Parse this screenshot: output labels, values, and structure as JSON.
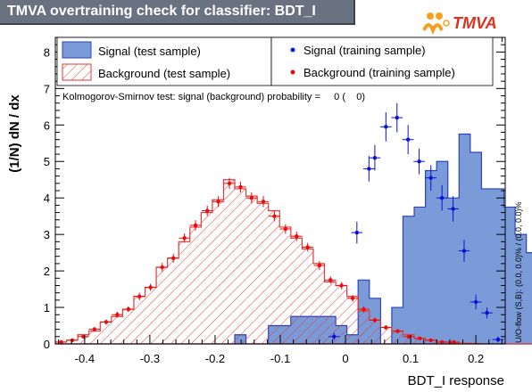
{
  "header": {
    "title": "TMVA overtraining check for classifier: BDT_I",
    "logo_text": "TMVA"
  },
  "colors": {
    "signal_fill": "#7b9bd8",
    "signal_line": "#2a44b8",
    "signal_marker": "#0a10d8",
    "background_hatch": "#e03a3a",
    "background_marker": "#ee0a0a",
    "title_bg": "#6a7282",
    "logo_orange": "#f5a020"
  },
  "legend": {
    "signal_test": "Signal (test sample)",
    "background_test": "Background (test sample)",
    "signal_training": "Signal (training sample)",
    "background_training": "Background (training sample)"
  },
  "ks_text": "Kolmogorov-Smirnov test: signal (background) probability =     0 (    0)",
  "side_text": "U/O-flow (S,B): (0.0, 0.0)% / (0.0, 0.0)%",
  "chart_data": {
    "type": "histogram",
    "xlabel": "BDT_I response",
    "ylabel": "(1/N) dN / dx",
    "xlim": [
      -0.445,
      0.245
    ],
    "ylim": [
      0,
      8.4
    ],
    "xticks": [
      "-0.4",
      "-0.3",
      "-0.2",
      "-0.1",
      "0",
      "0.1",
      "0.2"
    ],
    "xtick_values": [
      -0.4,
      -0.3,
      -0.2,
      -0.1,
      0,
      0.1,
      0.2
    ],
    "yticks": [
      "0",
      "1",
      "2",
      "3",
      "4",
      "5",
      "6",
      "7",
      "8"
    ],
    "ytick_values": [
      0,
      1,
      2,
      3,
      4,
      5,
      6,
      7,
      8
    ],
    "bin_edges_start": -0.445,
    "bin_width": 0.0172,
    "series": [
      {
        "name": "Signal (test sample)",
        "kind": "filled histogram",
        "values": [
          0,
          0,
          0,
          0,
          0,
          0,
          0,
          0,
          0,
          0,
          0,
          0,
          0,
          0,
          0,
          0,
          0.25,
          0,
          0,
          0.5,
          0.5,
          0.75,
          0.75,
          0.75,
          0.75,
          0.5,
          0.25,
          1.75,
          1.25,
          0,
          1.0,
          3.5,
          3.75,
          4.75,
          5.0,
          4.0,
          5.75,
          5.25,
          4.25,
          4.25,
          3.75,
          3.0,
          2.5,
          1.25,
          0.75,
          0.25,
          0.25
        ]
      },
      {
        "name": "Background (test sample)",
        "kind": "hatched histogram",
        "values": [
          0.05,
          0.1,
          0.25,
          0.35,
          0.6,
          0.75,
          0.95,
          1.3,
          1.55,
          2.1,
          2.35,
          2.8,
          3.2,
          3.6,
          3.95,
          4.5,
          4.25,
          4.05,
          3.85,
          3.65,
          3.2,
          2.9,
          2.6,
          2.2,
          1.7,
          1.6,
          1.3,
          0.9,
          0.65,
          0.45,
          0.35,
          0.25,
          0.15,
          0.1,
          0.05,
          0.03,
          0.02,
          0.01,
          0,
          0,
          0,
          0,
          0,
          0,
          0,
          0,
          0
        ]
      },
      {
        "name": "Signal (training sample)",
        "kind": "points with error bars",
        "points": [
          {
            "x": -0.0175,
            "y": 0.2,
            "err": 0.1
          },
          {
            "x": 0.0175,
            "y": 3.05,
            "err": 0.3
          },
          {
            "x": 0.036,
            "y": 4.8,
            "err": 0.35
          },
          {
            "x": 0.045,
            "y": 5.1,
            "err": 0.35
          },
          {
            "x": 0.062,
            "y": 5.95,
            "err": 0.4
          },
          {
            "x": 0.079,
            "y": 6.2,
            "err": 0.4
          },
          {
            "x": 0.096,
            "y": 5.6,
            "err": 0.4
          },
          {
            "x": 0.113,
            "y": 5.0,
            "err": 0.35
          },
          {
            "x": 0.131,
            "y": 4.55,
            "err": 0.35
          },
          {
            "x": 0.148,
            "y": 4.0,
            "err": 0.35
          },
          {
            "x": 0.165,
            "y": 3.7,
            "err": 0.35
          },
          {
            "x": 0.182,
            "y": 2.55,
            "err": 0.3
          },
          {
            "x": 0.2,
            "y": 1.15,
            "err": 0.2
          },
          {
            "x": 0.217,
            "y": 0.85,
            "err": 0.15
          },
          {
            "x": 0.234,
            "y": 0.12,
            "err": 0.08
          }
        ]
      },
      {
        "name": "Background (training sample)",
        "kind": "points with error bars",
        "points": [
          {
            "x": -0.436,
            "y": 0.05,
            "err": 0.03
          },
          {
            "x": -0.419,
            "y": 0.1,
            "err": 0.04
          },
          {
            "x": -0.402,
            "y": 0.2,
            "err": 0.05
          },
          {
            "x": -0.385,
            "y": 0.4,
            "err": 0.06
          },
          {
            "x": -0.367,
            "y": 0.6,
            "err": 0.07
          },
          {
            "x": -0.35,
            "y": 0.8,
            "err": 0.08
          },
          {
            "x": -0.333,
            "y": 0.95,
            "err": 0.08
          },
          {
            "x": -0.316,
            "y": 1.3,
            "err": 0.1
          },
          {
            "x": -0.299,
            "y": 1.55,
            "err": 0.1
          },
          {
            "x": -0.281,
            "y": 2.1,
            "err": 0.12
          },
          {
            "x": -0.264,
            "y": 2.35,
            "err": 0.12
          },
          {
            "x": -0.247,
            "y": 2.9,
            "err": 0.13
          },
          {
            "x": -0.23,
            "y": 3.25,
            "err": 0.14
          },
          {
            "x": -0.212,
            "y": 3.65,
            "err": 0.14
          },
          {
            "x": -0.195,
            "y": 3.9,
            "err": 0.15
          },
          {
            "x": -0.178,
            "y": 4.4,
            "err": 0.15
          },
          {
            "x": -0.161,
            "y": 4.3,
            "err": 0.15
          },
          {
            "x": -0.144,
            "y": 4.0,
            "err": 0.15
          },
          {
            "x": -0.126,
            "y": 3.9,
            "err": 0.15
          },
          {
            "x": -0.109,
            "y": 3.5,
            "err": 0.14
          },
          {
            "x": -0.092,
            "y": 3.15,
            "err": 0.13
          },
          {
            "x": -0.075,
            "y": 2.95,
            "err": 0.13
          },
          {
            "x": -0.058,
            "y": 2.65,
            "err": 0.12
          },
          {
            "x": -0.04,
            "y": 2.15,
            "err": 0.12
          },
          {
            "x": -0.023,
            "y": 1.75,
            "err": 0.1
          },
          {
            "x": -0.006,
            "y": 1.6,
            "err": 0.1
          },
          {
            "x": 0.011,
            "y": 1.25,
            "err": 0.09
          },
          {
            "x": 0.028,
            "y": 0.95,
            "err": 0.08
          },
          {
            "x": 0.045,
            "y": 0.65,
            "err": 0.07
          },
          {
            "x": 0.062,
            "y": 0.45,
            "err": 0.06
          },
          {
            "x": 0.08,
            "y": 0.35,
            "err": 0.05
          },
          {
            "x": 0.097,
            "y": 0.2,
            "err": 0.04
          },
          {
            "x": 0.114,
            "y": 0.15,
            "err": 0.04
          },
          {
            "x": 0.131,
            "y": 0.1,
            "err": 0.03
          },
          {
            "x": 0.148,
            "y": 0.05,
            "err": 0.02
          },
          {
            "x": 0.166,
            "y": 0.05,
            "err": 0.02
          }
        ]
      }
    ]
  }
}
